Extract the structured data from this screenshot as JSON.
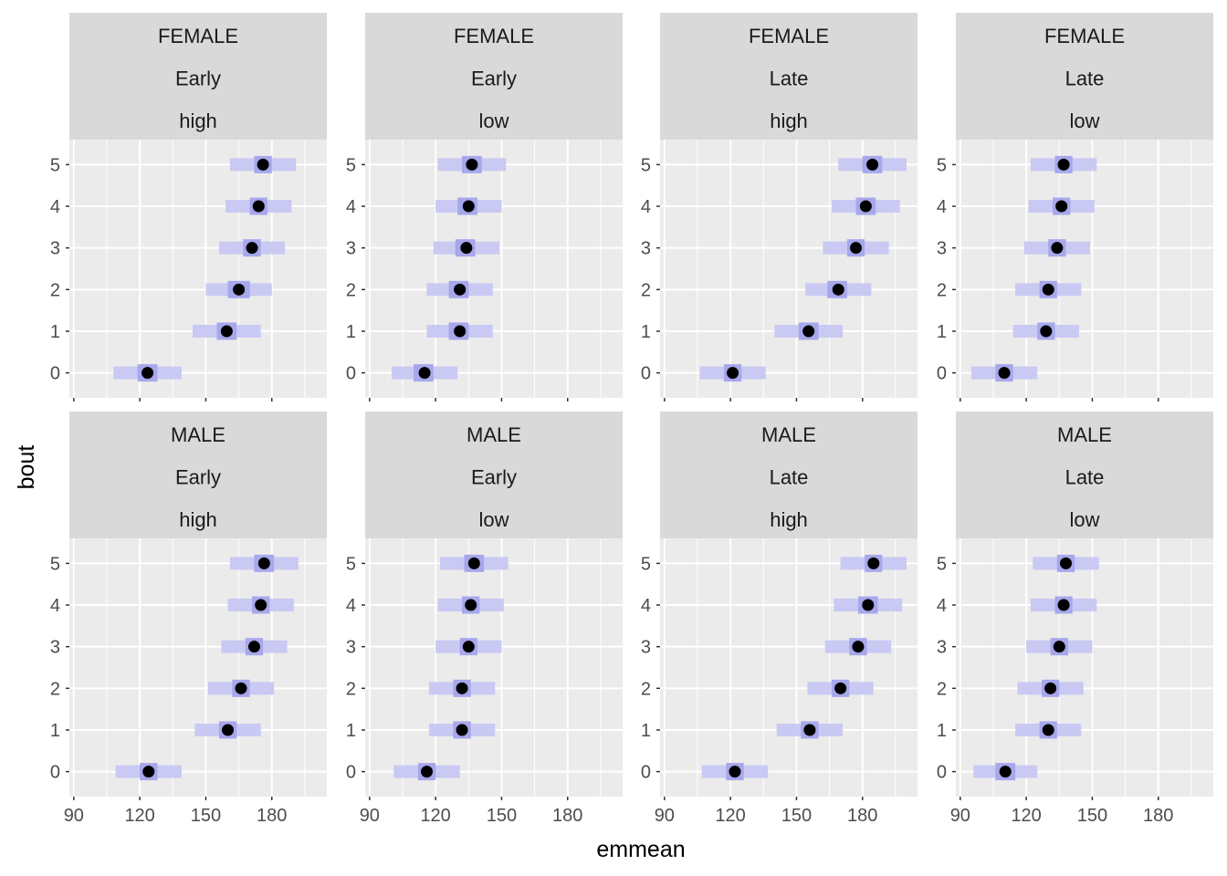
{
  "chart_data": {
    "type": "faceted-interval-dot",
    "xlabel": "emmean",
    "ylabel": "bout",
    "xlim": [
      88,
      205
    ],
    "ylim": [
      -0.6,
      5.6
    ],
    "x_ticks": [
      90,
      120,
      150,
      180
    ],
    "y_ticks": [
      0,
      1,
      2,
      3,
      4,
      5
    ],
    "categories": [
      "0",
      "1",
      "2",
      "3",
      "4",
      "5"
    ],
    "colors": {
      "panel_bg": "#ebebeb",
      "strip_bg": "#d9d9d9",
      "grid": "#ffffff",
      "band_outer": "#c9c9f3",
      "band_inner": "#a7a7ec",
      "point": "#000000"
    },
    "facets": [
      {
        "strip": [
          "FEMALE",
          "Early",
          "high"
        ],
        "bout": [
          0,
          1,
          2,
          3,
          4,
          5
        ],
        "emmean": [
          123.5,
          159.5,
          165,
          171,
          174,
          176
        ],
        "lower": [
          108,
          144,
          150,
          156,
          159,
          161
        ],
        "upper": [
          139,
          175,
          180,
          186,
          189,
          191
        ],
        "inner_lower": [
          119,
          155,
          160,
          167,
          170,
          172
        ],
        "inner_upper": [
          128,
          164,
          170,
          175,
          178,
          180
        ]
      },
      {
        "strip": [
          "FEMALE",
          "Early",
          "low"
        ],
        "bout": [
          0,
          1,
          2,
          3,
          4,
          5
        ],
        "emmean": [
          115,
          131,
          131,
          134,
          135,
          136.5
        ],
        "lower": [
          100,
          116,
          116,
          119,
          120,
          121
        ],
        "upper": [
          130,
          146,
          146,
          149,
          150,
          152
        ],
        "inner_lower": [
          110,
          126,
          126,
          129,
          130,
          132
        ],
        "inner_upper": [
          119,
          135,
          135,
          138,
          139,
          141
        ]
      },
      {
        "strip": [
          "FEMALE",
          "Late",
          "high"
        ],
        "bout": [
          0,
          1,
          2,
          3,
          4,
          5
        ],
        "emmean": [
          121,
          155.5,
          169,
          177,
          181.5,
          184.5
        ],
        "lower": [
          106,
          140,
          154,
          162,
          166,
          169
        ],
        "upper": [
          136,
          171,
          184,
          192,
          197,
          200
        ],
        "inner_lower": [
          117,
          151,
          164,
          173,
          177,
          180
        ],
        "inner_upper": [
          125,
          160,
          173,
          181,
          186,
          189
        ]
      },
      {
        "strip": [
          "FEMALE",
          "Late",
          "low"
        ],
        "bout": [
          0,
          1,
          2,
          3,
          4,
          5
        ],
        "emmean": [
          110,
          129,
          130,
          134,
          136,
          137
        ],
        "lower": [
          95,
          114,
          115,
          119,
          121,
          122
        ],
        "upper": [
          125,
          144,
          145,
          149,
          151,
          152
        ],
        "inner_lower": [
          106,
          125,
          126,
          130,
          132,
          133
        ],
        "inner_upper": [
          114,
          133,
          134,
          138,
          140,
          141
        ]
      },
      {
        "strip": [
          "MALE",
          "Early",
          "high"
        ],
        "bout": [
          0,
          1,
          2,
          3,
          4,
          5
        ],
        "emmean": [
          124,
          160,
          166,
          172,
          175,
          176.5
        ],
        "lower": [
          109,
          145,
          151,
          157,
          160,
          161
        ],
        "upper": [
          139,
          175,
          181,
          187,
          190,
          192
        ],
        "inner_lower": [
          120,
          156,
          162,
          168,
          171,
          172
        ],
        "inner_upper": [
          128,
          164,
          170,
          176,
          179,
          181
        ]
      },
      {
        "strip": [
          "MALE",
          "Early",
          "low"
        ],
        "bout": [
          0,
          1,
          2,
          3,
          4,
          5
        ],
        "emmean": [
          116,
          132,
          132,
          135,
          136,
          137.5
        ],
        "lower": [
          101,
          117,
          117,
          120,
          121,
          122
        ],
        "upper": [
          131,
          147,
          147,
          150,
          151,
          153
        ],
        "inner_lower": [
          112,
          128,
          128,
          131,
          132,
          133
        ],
        "inner_upper": [
          120,
          136,
          136,
          139,
          140,
          142
        ]
      },
      {
        "strip": [
          "MALE",
          "Late",
          "high"
        ],
        "bout": [
          0,
          1,
          2,
          3,
          4,
          5
        ],
        "emmean": [
          122,
          156,
          170,
          178,
          182.5,
          185
        ],
        "lower": [
          107,
          141,
          155,
          163,
          167,
          170
        ],
        "upper": [
          137,
          171,
          185,
          193,
          198,
          200
        ],
        "inner_lower": [
          118,
          152,
          166,
          174,
          178,
          181
        ],
        "inner_upper": [
          126,
          160,
          174,
          182,
          187,
          189
        ]
      },
      {
        "strip": [
          "MALE",
          "Late",
          "low"
        ],
        "bout": [
          0,
          1,
          2,
          3,
          4,
          5
        ],
        "emmean": [
          110.5,
          130,
          131,
          135,
          137,
          138
        ],
        "lower": [
          96,
          115,
          116,
          120,
          122,
          123
        ],
        "upper": [
          125,
          145,
          146,
          150,
          152,
          153
        ],
        "inner_lower": [
          106,
          126,
          127,
          131,
          133,
          134
        ],
        "inner_upper": [
          115,
          134,
          135,
          139,
          141,
          142
        ]
      }
    ]
  }
}
